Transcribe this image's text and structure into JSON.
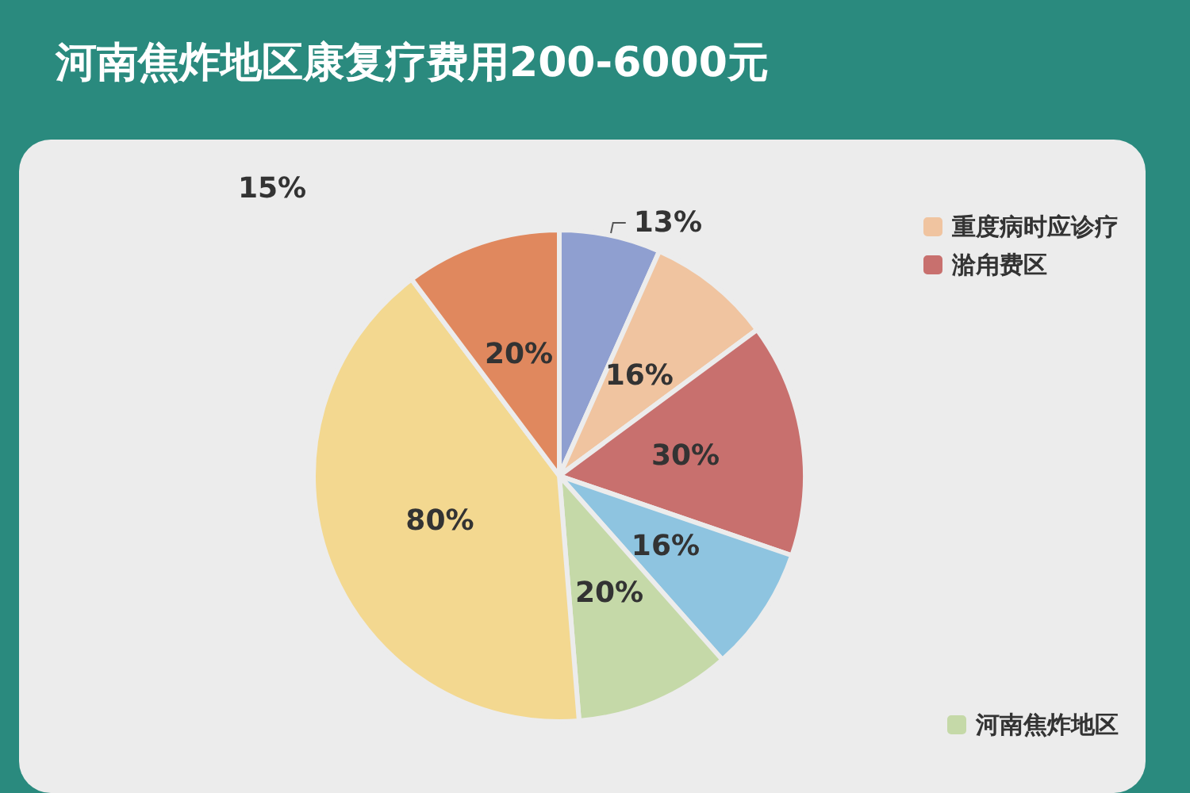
{
  "chart_data": {
    "type": "pie",
    "title": "河南焦炸地区康复疗费用200-6000元",
    "categories": [
      null,
      "重度病时应诊疗",
      "湁甪费区",
      null,
      "河南焦炸地区",
      null,
      null
    ],
    "values": [
      13,
      16,
      30,
      16,
      20,
      80,
      20
    ],
    "colors": [
      "#8f9fd0",
      "#f0c4a0",
      "#c8706e",
      "#8ec4e0",
      "#c5d9a8",
      "#f3d890",
      "#e0885e"
    ],
    "value_labels": [
      "13%",
      "16%",
      "30%",
      "16%",
      "20%",
      "80%",
      "20%"
    ],
    "legend": "right",
    "annotations": [
      "15%"
    ]
  }
}
